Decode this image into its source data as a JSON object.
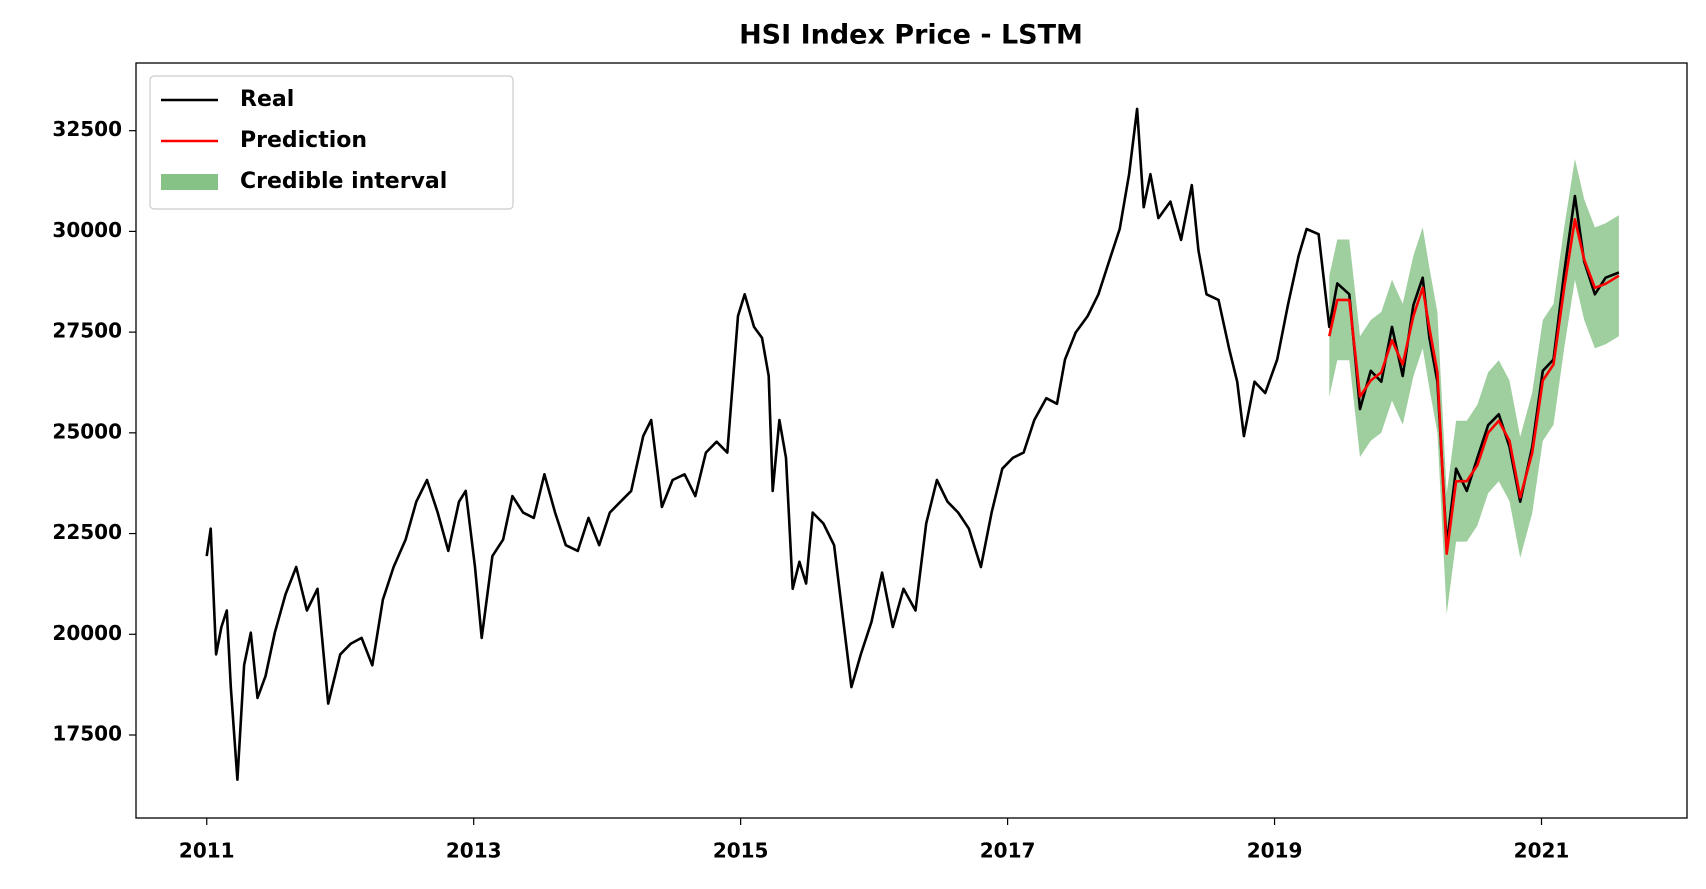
{
  "chart_data": {
    "type": "line",
    "title": "HSI Index Price - LSTM",
    "xlim": [
      2010.47,
      2022.09
    ],
    "xticks": [
      2011,
      2013,
      2015,
      2017,
      2019,
      2021
    ],
    "ylim": [
      15440,
      34180
    ],
    "yticks": [
      17500,
      20000,
      22500,
      25000,
      27500,
      30000,
      32500
    ],
    "legend": "upper left",
    "series": [
      {
        "name": "Real",
        "color": "#000000",
        "x": [
          2011.0,
          2011.03,
          2011.07,
          2011.11,
          2011.15,
          2011.18,
          2011.23,
          2011.28,
          2011.33,
          2011.38,
          2011.44,
          2011.51,
          2011.59,
          2011.67,
          2011.75,
          2011.83,
          2011.91,
          2012.0,
          2012.08,
          2012.16,
          2012.24,
          2012.32,
          2012.4,
          2012.49,
          2012.57,
          2012.65,
          2012.73,
          2012.81,
          2012.89,
          2012.94,
          2013.01,
          2013.06,
          2013.14,
          2013.22,
          2013.29,
          2013.37,
          2013.45,
          2013.53,
          2013.61,
          2013.69,
          2013.78,
          2013.86,
          2013.94,
          2014.02,
          2014.1,
          2014.18,
          2014.27,
          2014.33,
          2014.41,
          2014.49,
          2014.58,
          2014.66,
          2014.74,
          2014.82,
          2014.9,
          2014.98,
          2015.03,
          2015.1,
          2015.16,
          2015.21,
          2015.24,
          2015.29,
          2015.34,
          2015.39,
          2015.44,
          2015.49,
          2015.54,
          2015.62,
          2015.7,
          2015.77,
          2015.83,
          2015.9,
          2015.98,
          2016.06,
          2016.14,
          2016.22,
          2016.31,
          2016.39,
          2016.47,
          2016.55,
          2016.63,
          2016.71,
          2016.8,
          2016.88,
          2016.96,
          2017.04,
          2017.12,
          2017.2,
          2017.29,
          2017.37,
          2017.43,
          2017.51,
          2017.6,
          2017.68,
          2017.76,
          2017.84,
          2017.91,
          2017.97,
          2018.02,
          2018.07,
          2018.13,
          2018.22,
          2018.3,
          2018.38,
          2018.43,
          2018.49,
          2018.58,
          2018.66,
          2018.72,
          2018.77,
          2018.85,
          2018.93,
          2019.02,
          2019.1,
          2019.18,
          2019.24,
          2019.33,
          2019.41,
          2019.47,
          2019.56,
          2019.64,
          2019.72,
          2019.8,
          2019.88,
          2019.96,
          2020.04,
          2020.11,
          2020.16,
          2020.22,
          2020.29,
          2020.36,
          2020.44,
          2020.52,
          2020.6,
          2020.68,
          2020.76,
          2020.84,
          2020.93,
          2021.01,
          2021.09,
          2021.17,
          2021.25,
          2021.32,
          2021.4,
          2021.48,
          2021.58
        ],
        "values": [
          21940,
          22620,
          19500,
          20180,
          20590,
          18690,
          16390,
          19230,
          20040,
          18420,
          18960,
          20040,
          20990,
          21670,
          20590,
          21130,
          18280,
          19500,
          19770,
          19910,
          19230,
          20860,
          21670,
          22350,
          23290,
          23830,
          23020,
          22070,
          23290,
          23560,
          21670,
          19910,
          21940,
          22350,
          23430,
          23020,
          22890,
          23970,
          23020,
          22210,
          22070,
          22890,
          22210,
          23020,
          23290,
          23560,
          24920,
          25320,
          23160,
          23830,
          23970,
          23430,
          24510,
          24780,
          24510,
          27900,
          28440,
          27630,
          27360,
          26410,
          23560,
          25320,
          24380,
          21130,
          21800,
          21260,
          23020,
          22750,
          22210,
          20310,
          18690,
          19500,
          20310,
          21530,
          20180,
          21130,
          20590,
          22750,
          23830,
          23290,
          23020,
          22620,
          21670,
          23020,
          24110,
          24380,
          24510,
          25320,
          25860,
          25720,
          26820,
          27490,
          27900,
          28440,
          29250,
          30060,
          31420,
          33040,
          30600,
          31420,
          30330,
          30740,
          29790,
          31150,
          29520,
          28440,
          28300,
          27080,
          26270,
          24920,
          26270,
          25990,
          26820,
          28170,
          29390,
          30060,
          29930,
          27630,
          28710,
          28440,
          25590,
          26540,
          26270,
          27630,
          26410,
          28170,
          28850,
          27360,
          26270,
          22210,
          24110,
          23560,
          24380,
          25190,
          25460,
          24650,
          23290,
          24650,
          26540,
          26820,
          28980,
          30880,
          29250,
          28440,
          28850,
          28980
        ]
      },
      {
        "name": "Prediction",
        "color": "#ff0000",
        "x": [
          2019.41,
          2019.47,
          2019.56,
          2019.64,
          2019.72,
          2019.8,
          2019.88,
          2019.96,
          2020.04,
          2020.11,
          2020.16,
          2020.22,
          2020.29,
          2020.36,
          2020.44,
          2020.52,
          2020.6,
          2020.68,
          2020.76,
          2020.84,
          2020.93,
          2021.01,
          2021.09,
          2021.17,
          2021.25,
          2021.32,
          2021.4,
          2021.48,
          2021.58
        ],
        "values": [
          27400,
          28300,
          28300,
          25900,
          26300,
          26500,
          27300,
          26700,
          27900,
          28600,
          27600,
          26500,
          22000,
          23800,
          23800,
          24200,
          25000,
          25300,
          24800,
          23400,
          24500,
          26300,
          26700,
          28600,
          30300,
          29300,
          28600,
          28700,
          28900
        ]
      },
      {
        "name": "Credible interval",
        "color": "#7fbf7f",
        "x": [
          2019.41,
          2019.47,
          2019.56,
          2019.64,
          2019.72,
          2019.8,
          2019.88,
          2019.96,
          2020.04,
          2020.11,
          2020.16,
          2020.22,
          2020.29,
          2020.36,
          2020.44,
          2020.52,
          2020.6,
          2020.68,
          2020.76,
          2020.84,
          2020.93,
          2021.01,
          2021.09,
          2021.17,
          2021.25,
          2021.32,
          2021.4,
          2021.48,
          2021.58
        ],
        "lower": [
          25900,
          26800,
          26800,
          24400,
          24800,
          25000,
          25800,
          25200,
          26400,
          27100,
          26100,
          25000,
          20500,
          22300,
          22300,
          22700,
          23500,
          23800,
          23300,
          21900,
          23000,
          24800,
          25200,
          27100,
          28800,
          27800,
          27100,
          27200,
          27400
        ],
        "upper": [
          28900,
          29800,
          29800,
          27400,
          27800,
          28000,
          28800,
          28200,
          29400,
          30100,
          29100,
          28000,
          23500,
          25300,
          25300,
          25700,
          26500,
          26800,
          26300,
          24900,
          26000,
          27800,
          28200,
          30100,
          31800,
          30800,
          30100,
          30200,
          30400
        ]
      }
    ]
  }
}
